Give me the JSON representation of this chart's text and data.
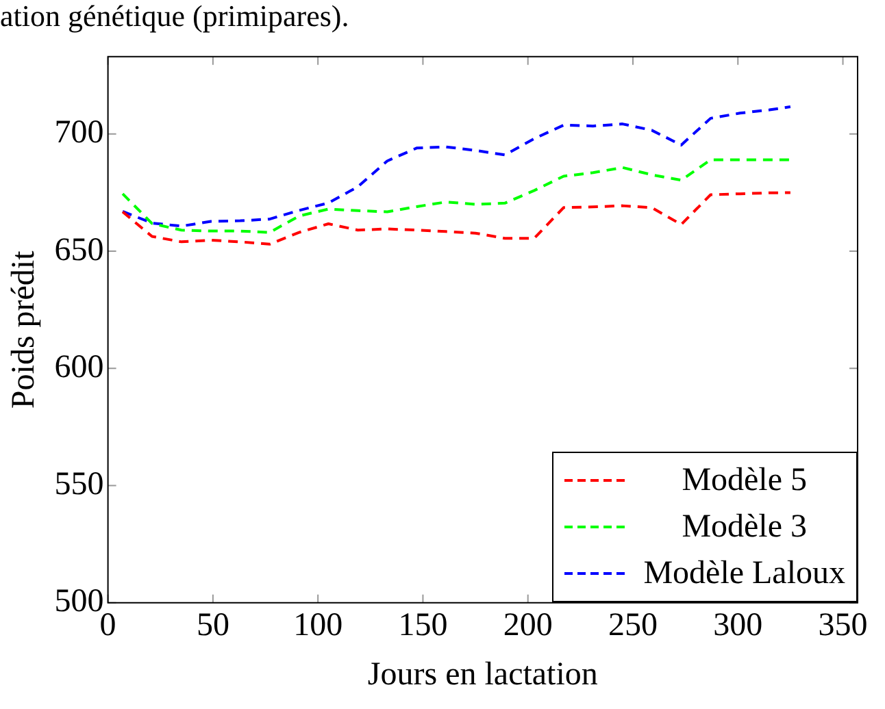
{
  "chart_data": {
    "type": "line",
    "title": "ation génétique (primipares).",
    "xlabel": "Jours en lactation",
    "ylabel": "Poids prédit",
    "x": [
      7,
      21,
      35,
      49,
      63,
      77,
      91,
      105,
      119,
      133,
      147,
      161,
      175,
      189,
      203,
      217,
      231,
      245,
      259,
      273,
      287,
      301,
      315,
      325
    ],
    "series": [
      {
        "name": "Modèle 5",
        "color": "#ff0000",
        "values": [
          666.8,
          656.3,
          654,
          654.7,
          654,
          653,
          658,
          661.7,
          659,
          659.5,
          659,
          658.4,
          657.7,
          655.5,
          655.5,
          668.6,
          668.9,
          669.4,
          668.6,
          661.4,
          674.1,
          674.5,
          674.9,
          675
        ]
      },
      {
        "name": "Modèle 3",
        "color": "#00ff00",
        "values": [
          674.5,
          661.8,
          659,
          658.6,
          658.6,
          658,
          665,
          668,
          667.3,
          666.8,
          669,
          671,
          670,
          670.5,
          675.9,
          682,
          683.5,
          685.7,
          682.6,
          680.3,
          689,
          689,
          689,
          689
        ]
      },
      {
        "name": "Modèle Laloux",
        "color": "#0000ff",
        "values": [
          667,
          662,
          660.7,
          662.7,
          663,
          663.7,
          667.4,
          670.6,
          677.5,
          688.5,
          694,
          694.5,
          693,
          691.1,
          698,
          703.8,
          703.4,
          704.3,
          701.6,
          695.3,
          706.7,
          708.9,
          710.3,
          711.6
        ]
      }
    ],
    "xlim": [
      0,
      357
    ],
    "xticks": [
      0,
      50,
      100,
      150,
      200,
      250,
      300,
      350
    ],
    "ylim": [
      500,
      733
    ],
    "yticks": [
      500,
      550,
      600,
      650,
      700
    ],
    "grid": false,
    "legend": "bottom right",
    "line_style": "dashed",
    "marker": "none"
  }
}
